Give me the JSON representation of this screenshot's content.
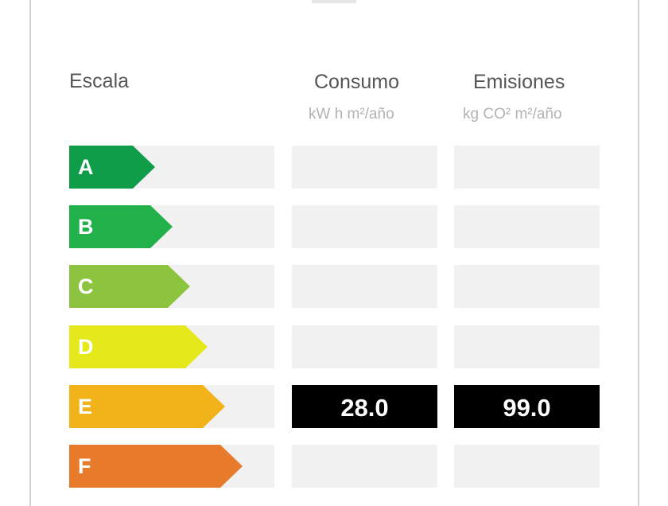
{
  "headers": {
    "scale": "Escala",
    "consumption": "Consumo",
    "consumption_unit": "kW h m²/año",
    "emissions": "Emisiones",
    "emissions_unit": "kg CO² m²/año"
  },
  "ratings": [
    {
      "letter": "A",
      "color": "#0f9d4a",
      "consumption": "",
      "emissions": ""
    },
    {
      "letter": "B",
      "color": "#22b04b",
      "consumption": "",
      "emissions": ""
    },
    {
      "letter": "C",
      "color": "#8dc43f",
      "consumption": "",
      "emissions": ""
    },
    {
      "letter": "D",
      "color": "#e5e91c",
      "consumption": "",
      "emissions": ""
    },
    {
      "letter": "E",
      "color": "#f2b21a",
      "consumption": "28.0",
      "emissions": "99.0"
    },
    {
      "letter": "F",
      "color": "#e87a2b",
      "consumption": "",
      "emissions": ""
    }
  ],
  "current_rating": "E"
}
